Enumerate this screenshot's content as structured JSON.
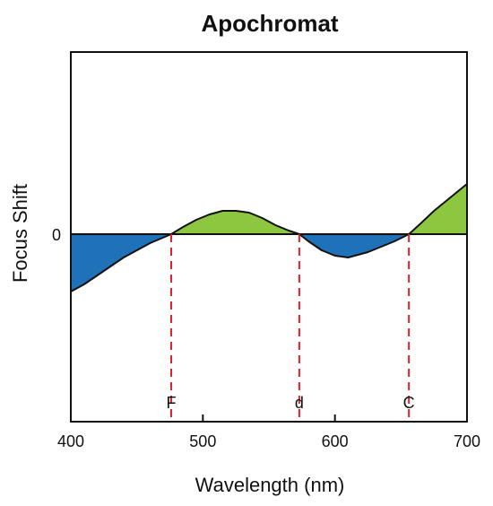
{
  "chart_data": {
    "type": "area",
    "title": "Apochromat",
    "xlabel": "Wavelength (nm)",
    "ylabel": "Focus Shift",
    "xlim": [
      400,
      700
    ],
    "ylim": [
      -1.0,
      1.0
    ],
    "grid": false,
    "legend": "none",
    "yticks": [
      {
        "value": 0,
        "label": "0"
      }
    ],
    "xticks": [
      {
        "value": 400,
        "label": "400"
      },
      {
        "value": 500,
        "label": "500"
      },
      {
        "value": 600,
        "label": "600"
      },
      {
        "value": 700,
        "label": "700"
      }
    ],
    "series": [
      {
        "x": [
          400,
          410,
          420,
          430,
          440,
          450,
          460,
          476,
          485,
          495,
          505,
          515,
          525,
          535,
          545,
          555,
          565,
          573,
          580,
          590,
          600,
          610,
          615,
          625,
          635,
          645,
          656,
          665,
          675,
          685,
          695,
          700
        ],
        "y": [
          -0.32,
          -0.28,
          -0.23,
          -0.18,
          -0.13,
          -0.09,
          -0.05,
          0.0,
          0.04,
          0.08,
          0.11,
          0.13,
          0.13,
          0.12,
          0.09,
          0.05,
          0.02,
          0.0,
          -0.04,
          -0.09,
          -0.12,
          -0.13,
          -0.12,
          -0.1,
          -0.07,
          -0.04,
          0.0,
          0.06,
          0.13,
          0.19,
          0.25,
          0.28
        ]
      }
    ],
    "fill_colors": {
      "negative": "#1f72b8",
      "positive": "#8dc63f"
    },
    "marker_color": "#e0202a",
    "markers": [
      {
        "label": "F",
        "x": 476
      },
      {
        "label": "d",
        "x": 573
      },
      {
        "label": "C",
        "x": 656
      }
    ]
  }
}
